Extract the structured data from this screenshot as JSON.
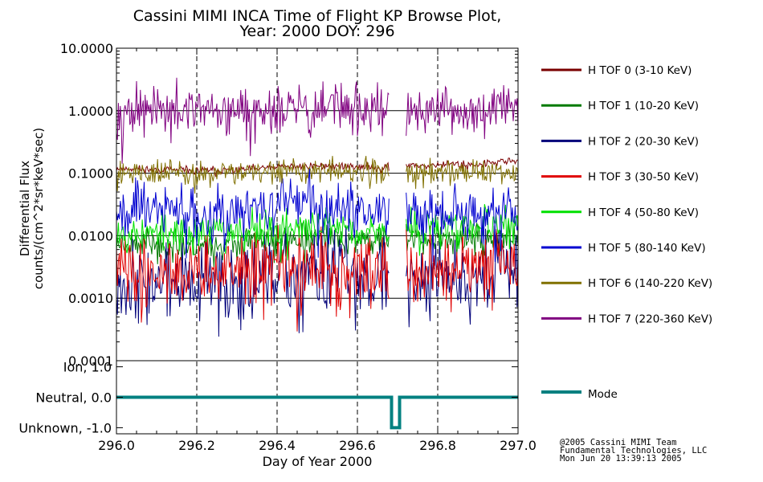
{
  "title_line1": "Cassini MIMI INCA Time of Flight KP Browse Plot,",
  "title_line2": "Year: 2000 DOY: 296",
  "credits": [
    "@2005 Cassini MIMI Team",
    "Fundamental Technologies, LLC",
    "Mon Jun 20 13:39:13 2005"
  ],
  "chart_data": [
    {
      "type": "line",
      "panel": "flux",
      "ylabel_line1": "Differential Flux",
      "ylabel_line2": "counts/(cm^2*sr*keV*sec)",
      "yscale": "log",
      "ylim": [
        0.0001,
        10.0
      ],
      "yticks": [
        {
          "value": 10.0,
          "label": "10.0000"
        },
        {
          "value": 1.0,
          "label": "1.0000"
        },
        {
          "value": 0.1,
          "label": "0.1000"
        },
        {
          "value": 0.01,
          "label": "0.0100"
        },
        {
          "value": 0.001,
          "label": "0.0010"
        },
        {
          "value": 0.0001,
          "label": "0.0001"
        }
      ],
      "xlim": [
        296.0,
        297.0
      ],
      "data_gap": [
        296.68,
        296.72
      ],
      "series": [
        {
          "name": "H TOF 0 (3-10 KeV)",
          "color": "#7a0000",
          "values": [
            0.12,
            0.115,
            0.11,
            0.11,
            0.12,
            0.13,
            0.13,
            0.125,
            0.13,
            0.14,
            0.14,
            0.16
          ],
          "noise": 0.03,
          "seed": 11
        },
        {
          "name": "H TOF 1 (10-20 KeV)",
          "color": "#007a00",
          "values": [
            0.008,
            0.0075,
            0.007,
            0.0072,
            0.008,
            0.0085,
            0.009,
            0.0085,
            0.009,
            0.009,
            0.0085,
            0.009
          ],
          "noise": 0.12,
          "seed": 23
        },
        {
          "name": "H TOF 2 (20-30 KeV)",
          "color": "#00007a",
          "values": [
            0.002,
            0.0018,
            0.0017,
            0.0018,
            0.002,
            0.0022,
            0.0025,
            0.0023,
            0.0022,
            0.0025,
            0.0028,
            0.003
          ],
          "noise": 0.32,
          "seed": 37
        },
        {
          "name": "H TOF 3 (30-50 KeV)",
          "color": "#e00000",
          "values": [
            0.003,
            0.0028,
            0.0027,
            0.0028,
            0.003,
            0.0028,
            0.003,
            0.0028,
            0.0028,
            0.003,
            0.0032,
            0.0034
          ],
          "noise": 0.28,
          "seed": 41
        },
        {
          "name": "H TOF 4 (50-80 KeV)",
          "color": "#00e000",
          "values": [
            0.012,
            0.011,
            0.011,
            0.012,
            0.013,
            0.013,
            0.014,
            0.013,
            0.012,
            0.013,
            0.014,
            0.015
          ],
          "noise": 0.15,
          "seed": 53
        },
        {
          "name": "H TOF 5 (80-140 KeV)",
          "color": "#0000d0",
          "values": [
            0.03,
            0.028,
            0.025,
            0.025,
            0.03,
            0.032,
            0.03,
            0.028,
            0.025,
            0.025,
            0.022,
            0.025
          ],
          "noise": 0.22,
          "seed": 67
        },
        {
          "name": "H TOF 6 (140-220 KeV)",
          "color": "#807000",
          "values": [
            0.11,
            0.105,
            0.1,
            0.1,
            0.105,
            0.11,
            0.11,
            0.105,
            0.1,
            0.1,
            0.1,
            0.1
          ],
          "noise": 0.1,
          "seed": 79
        },
        {
          "name": "H TOF 7 (220-360 KeV)",
          "color": "#800080",
          "values": [
            1.0,
            0.95,
            0.9,
            0.9,
            1.0,
            1.0,
            1.1,
            1.0,
            0.95,
            1.0,
            0.9,
            0.95
          ],
          "noise": 0.2,
          "seed": 97
        }
      ]
    },
    {
      "type": "line",
      "panel": "mode",
      "yticks": [
        {
          "value": 1.0,
          "label": "Ion, 1.0"
        },
        {
          "value": 0.0,
          "label": "Neutral, 0.0"
        },
        {
          "value": -1.0,
          "label": "Unknown, -1.0"
        }
      ],
      "ylim": [
        -1.2,
        1.2
      ],
      "xlim": [
        296.0,
        297.0
      ],
      "xlabel": "Day of Year 2000",
      "xticks": [
        {
          "value": 296.0,
          "label": "296.0"
        },
        {
          "value": 296.2,
          "label": "296.2"
        },
        {
          "value": 296.4,
          "label": "296.4"
        },
        {
          "value": 296.6,
          "label": "296.6"
        },
        {
          "value": 296.8,
          "label": "296.8"
        },
        {
          "value": 297.0,
          "label": "297.0"
        }
      ],
      "series": [
        {
          "name": "Mode",
          "color": "#008080",
          "x": [
            296.0,
            296.685,
            296.685,
            296.705,
            296.705,
            297.0
          ],
          "y": [
            0.0,
            0.0,
            -1.0,
            -1.0,
            0.0,
            0.0
          ]
        }
      ]
    }
  ]
}
